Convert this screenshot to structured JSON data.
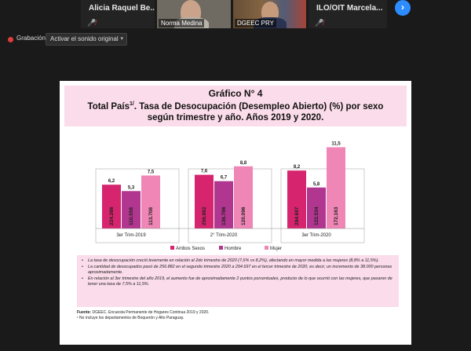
{
  "participants": [
    {
      "name": "Alicia Raquel Be...",
      "muted": true
    },
    {
      "name": "Norma Medina",
      "muted": true,
      "video": true
    },
    {
      "name": "DGEEC PRY",
      "video": true
    },
    {
      "name": "ILO/OIT Marcela...",
      "muted": true
    }
  ],
  "toolbar": {
    "recording_label": "Grabación",
    "original_sound_label": "Activar el sonido original"
  },
  "slide": {
    "title_line1": "Gráfico N° 4",
    "title_line2_a": "Total País",
    "title_line2_sup": "1/",
    "title_line2_b": ". Tasa de Desocupación (Desempleo Abierto) (%) por sexo",
    "title_line3": "según trimestre y año. Años 2019 y 2020.",
    "notes": [
      "La tasa de desocupación creció levemente en relación al 2do trimestre de 2020 (7,6% vs 8,2%), afectando en mayor medida a las mujeres (8,8% a 11,5%).",
      "La cantidad de desocupados pasó de 256.882 en el segundo trimestre 2020 a 294.697 en el tercer trimestre de 2020, es decir, un incremento de 38.000 personas aproximadamente.",
      "En relación al 3er trimestre del año 2019, el aumento fue de aproximadamente 2 puntos porcentuales, producto de lo que ocurrió con las mujeres, que pasaron de tener una tasa de 7,5% a 11,5%."
    ],
    "source_label": "Fuente:",
    "source_text": "DGEEC. Encuesta Permanente de Hogares Continua 2019 y 2020.",
    "footnote": "¹ No incluye los departamentos de Boquerón y Alto Paraguay."
  },
  "chart_data": {
    "type": "bar",
    "categories": [
      "3er Trim-2019",
      "2° Trim-2020",
      "3er Trim-2020"
    ],
    "series": [
      {
        "name": "Ambos Sexos",
        "color": "#d6246e",
        "values": [
          6.2,
          7.6,
          8.2
        ],
        "counts": [
          "224.266",
          "256.882",
          "294.697"
        ]
      },
      {
        "name": "Hombre",
        "color": "#b0368f",
        "values": [
          5.3,
          6.7,
          5.8
        ],
        "counts": [
          "110.558",
          "136.786",
          "122.534"
        ]
      },
      {
        "name": "Mujer",
        "color": "#ef86b6",
        "values": [
          7.5,
          8.8,
          11.5
        ],
        "counts": [
          "113.708",
          "120.096",
          "172.163"
        ]
      }
    ],
    "value_labels": [
      [
        "6,2",
        "5,3",
        "7,5"
      ],
      [
        "7,6",
        "6,7",
        "8,8"
      ],
      [
        "8,2",
        "5,8",
        "11,5"
      ]
    ],
    "ylim": [
      0,
      12
    ],
    "legend_position": "bottom"
  }
}
